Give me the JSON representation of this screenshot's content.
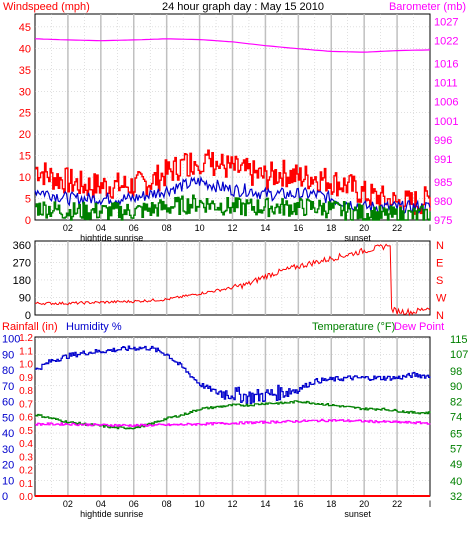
{
  "colors": {
    "wind": "#ff0000",
    "gust": "#ff0000",
    "avg_wind": "#0000cc",
    "wind_green": "#008000",
    "barometer": "#ff00ff",
    "rain": "#ff0000",
    "humidity": "#0000cc",
    "temperature": "#008000",
    "dew_point": "#ff00ff",
    "grid": "#c0c0c0",
    "frame": "#000000",
    "plot_bg": "#ffffff"
  },
  "chart_data": [
    {
      "type": "line",
      "title": "24 hour graph day : May 15 2010",
      "left_axis_label": "Windspeed (mph)",
      "right_axis_label": "Barometer (mb)",
      "left_ticks": [
        "0",
        "5",
        "10",
        "15",
        "20",
        "25",
        "30",
        "35",
        "40",
        "45"
      ],
      "left_ylim": [
        0,
        48
      ],
      "right_ticks": [
        "975",
        "980",
        "985",
        "991",
        "996",
        "1001",
        "1006",
        "1011",
        "1016",
        "1022",
        "1027"
      ],
      "right_ylim": [
        975,
        1029
      ],
      "x_tick_labels": [
        "02",
        "04",
        "06",
        "08",
        "10",
        "12",
        "14",
        "16",
        "18",
        "20",
        "22",
        "l"
      ],
      "x_markers": [
        {
          "label": "hightide",
          "hour": 3.7
        },
        {
          "label": "sunrise",
          "hour": 5.7
        },
        {
          "label": "sunset",
          "hour": 19.6
        }
      ],
      "series": [
        {
          "name": "gust",
          "axis": "left",
          "x": [
            0,
            1,
            2,
            3,
            4,
            5,
            6,
            7,
            8,
            9,
            10,
            11,
            12,
            13,
            14,
            15,
            16,
            17,
            18,
            19,
            20,
            21,
            22,
            23,
            24
          ],
          "values": [
            12,
            10,
            9,
            8,
            8,
            8,
            8,
            9,
            11,
            13,
            14,
            13,
            12,
            11,
            10,
            11,
            10,
            10,
            9,
            8,
            6,
            5,
            4,
            4,
            5
          ]
        },
        {
          "name": "average",
          "axis": "left",
          "x": [
            0,
            1,
            2,
            3,
            4,
            5,
            6,
            7,
            8,
            9,
            10,
            11,
            12,
            13,
            14,
            15,
            16,
            17,
            18,
            19,
            20,
            21,
            22,
            23,
            24
          ],
          "values": [
            7,
            6,
            5,
            5,
            5,
            5,
            5,
            6,
            7,
            8,
            9,
            8,
            7,
            7,
            6,
            6,
            6,
            6,
            5,
            4,
            3,
            3,
            3,
            3,
            3
          ]
        },
        {
          "name": "speed",
          "axis": "left",
          "x": [
            0,
            1,
            2,
            3,
            4,
            5,
            6,
            7,
            8,
            9,
            10,
            11,
            12,
            13,
            14,
            15,
            16,
            17,
            18,
            19,
            20,
            21,
            22,
            23,
            24
          ],
          "values": [
            3,
            2.5,
            2,
            2,
            2,
            2,
            2,
            2.5,
            3,
            3.5,
            4,
            3.5,
            3,
            3,
            3,
            3,
            3,
            3,
            2.5,
            2,
            1.5,
            1,
            1,
            1,
            1.5
          ]
        },
        {
          "name": "barometer",
          "axis": "right",
          "x": [
            0,
            2,
            4,
            6,
            8,
            10,
            12,
            14,
            16,
            18,
            20,
            22,
            24
          ],
          "values": [
            1022.5,
            1022.2,
            1022.0,
            1022.2,
            1022.5,
            1022.3,
            1021.7,
            1020.7,
            1019.9,
            1019.2,
            1019.0,
            1019.4,
            1019.6
          ]
        }
      ]
    },
    {
      "type": "scatter",
      "title": "",
      "left_ticks": [
        "0",
        "90",
        "180",
        "270",
        "360"
      ],
      "left_ylim": [
        0,
        380
      ],
      "right_ticks": [
        "N",
        "W",
        "S",
        "E",
        "N"
      ],
      "x_tick_labels": [
        "02",
        "04",
        "06",
        "08",
        "10",
        "12",
        "14",
        "16",
        "18",
        "20",
        "22",
        "l"
      ],
      "series": [
        {
          "name": "wind direction",
          "x": [
            0,
            2,
            4,
            6,
            8,
            10,
            12,
            13,
            14,
            16,
            18,
            20,
            21.4,
            21.6,
            22,
            23,
            24
          ],
          "values": [
            60,
            60,
            65,
            70,
            80,
            110,
            140,
            160,
            200,
            250,
            290,
            330,
            355,
            30,
            20,
            15,
            40
          ]
        }
      ]
    },
    {
      "type": "line",
      "title": "",
      "labels": [
        "Rainfall (in)",
        "Humidity %",
        "Temperature (°F)",
        "Dew Point"
      ],
      "humidity_ticks": [
        "0",
        "10",
        "20",
        "30",
        "40",
        "50",
        "60",
        "70",
        "80",
        "90",
        "100"
      ],
      "humidity_ylim": [
        0,
        101
      ],
      "rain_ticks": [
        "0.0",
        "0.1",
        "0.2",
        "0.3",
        "0.4",
        "0.5",
        "0.6",
        "0.7",
        "0.8",
        "0.9",
        "1.0",
        "1.1",
        "1.2"
      ],
      "temp_ticks": [
        "32",
        "40",
        "49",
        "57",
        "65",
        "74",
        "82",
        "90",
        "98",
        "107",
        "115"
      ],
      "temp_ylim": [
        32,
        116
      ],
      "x_tick_labels": [
        "02",
        "04",
        "06",
        "08",
        "10",
        "12",
        "14",
        "16",
        "18",
        "20",
        "22",
        "l"
      ],
      "x_markers": [
        {
          "label": "hightide",
          "hour": 3.7
        },
        {
          "label": "sunrise",
          "hour": 5.7
        },
        {
          "label": "sunset",
          "hour": 19.6
        }
      ],
      "series": [
        {
          "name": "Humidity",
          "axis": "humidity",
          "x": [
            0,
            1,
            2,
            3,
            4,
            5,
            6,
            7,
            8,
            9,
            10,
            11,
            12,
            13,
            14,
            15,
            16,
            17,
            18,
            19,
            20,
            21,
            22,
            23,
            24
          ],
          "values": [
            80,
            86,
            89,
            91,
            92,
            93,
            94,
            94,
            90,
            81,
            71,
            66,
            65,
            63,
            64,
            66,
            68,
            73,
            74,
            75,
            75,
            75,
            75,
            77,
            76
          ]
        },
        {
          "name": "Temperature",
          "axis": "temp",
          "x": [
            0,
            1,
            2,
            3,
            4,
            5,
            6,
            7,
            8,
            9,
            10,
            11,
            12,
            13,
            14,
            15,
            16,
            17,
            18,
            19,
            20,
            21,
            22,
            23,
            24
          ],
          "values": [
            75,
            73,
            71,
            70,
            69,
            68,
            68,
            70,
            73,
            75,
            78,
            79,
            80,
            80,
            81,
            81,
            82,
            81,
            80,
            79,
            78,
            78,
            77,
            76,
            76
          ]
        },
        {
          "name": "Dew Point",
          "axis": "temp",
          "x": [
            0,
            2,
            4,
            6,
            8,
            10,
            12,
            14,
            16,
            18,
            20,
            22,
            24
          ],
          "values": [
            70,
            70,
            69.5,
            69.3,
            69.5,
            70,
            70.5,
            71,
            71.5,
            72,
            71.5,
            71,
            70.5
          ]
        },
        {
          "name": "Rainfall",
          "axis": "humidity",
          "x": [
            0,
            24
          ],
          "values": [
            0,
            0
          ]
        }
      ]
    }
  ]
}
